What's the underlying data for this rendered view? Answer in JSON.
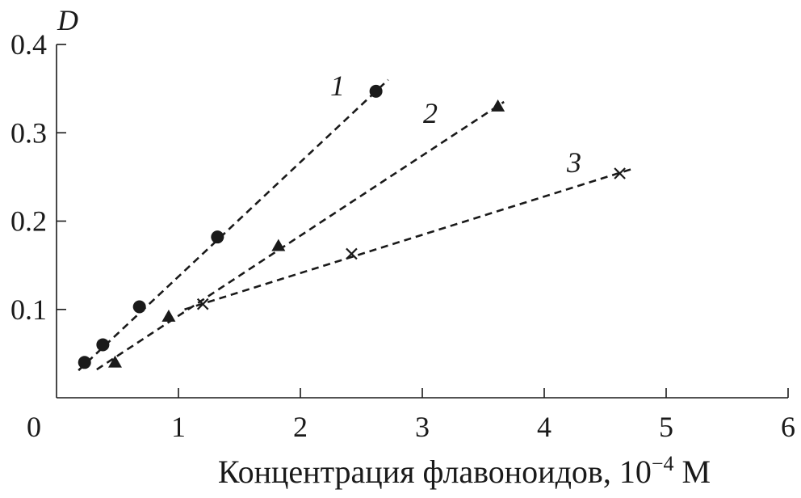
{
  "chart_data": {
    "type": "scatter",
    "title": "",
    "xlabel": "Концентрация флавоноидов, 10",
    "xlabel_exponent": "−4",
    "xlabel_unit": " М",
    "ylabel": "D",
    "xlim": [
      0,
      6
    ],
    "ylim": [
      0,
      0.4
    ],
    "x_ticks": [
      0,
      1,
      2,
      3,
      4,
      5,
      6
    ],
    "x_tick_labels": [
      "0",
      "1",
      "2",
      "3",
      "4",
      "5",
      "6"
    ],
    "y_ticks": [
      0.1,
      0.2,
      0.3,
      0.4
    ],
    "y_tick_labels": [
      "0.1",
      "0.2",
      "0.3",
      "0.4"
    ],
    "grid": false,
    "series": [
      {
        "label": "1",
        "marker": "circle",
        "points": [
          {
            "x": 0.23,
            "y": 0.04
          },
          {
            "x": 0.38,
            "y": 0.06
          },
          {
            "x": 0.68,
            "y": 0.103
          },
          {
            "x": 1.32,
            "y": 0.182
          },
          {
            "x": 2.62,
            "y": 0.347
          }
        ],
        "fit": {
          "x": [
            0.18,
            2.72
          ],
          "y": [
            0.031,
            0.36
          ]
        }
      },
      {
        "label": "2",
        "marker": "triangle",
        "points": [
          {
            "x": 0.48,
            "y": 0.04
          },
          {
            "x": 0.92,
            "y": 0.092
          },
          {
            "x": 1.82,
            "y": 0.172
          },
          {
            "x": 3.62,
            "y": 0.33
          }
        ],
        "fit": {
          "x": [
            0.33,
            3.67
          ],
          "y": [
            0.032,
            0.335
          ]
        }
      },
      {
        "label": "3",
        "marker": "x",
        "points": [
          {
            "x": 1.2,
            "y": 0.106
          },
          {
            "x": 2.42,
            "y": 0.163
          },
          {
            "x": 4.62,
            "y": 0.254
          }
        ],
        "fit": {
          "x": [
            1.05,
            4.72
          ],
          "y": [
            0.1,
            0.259
          ]
        }
      }
    ]
  }
}
